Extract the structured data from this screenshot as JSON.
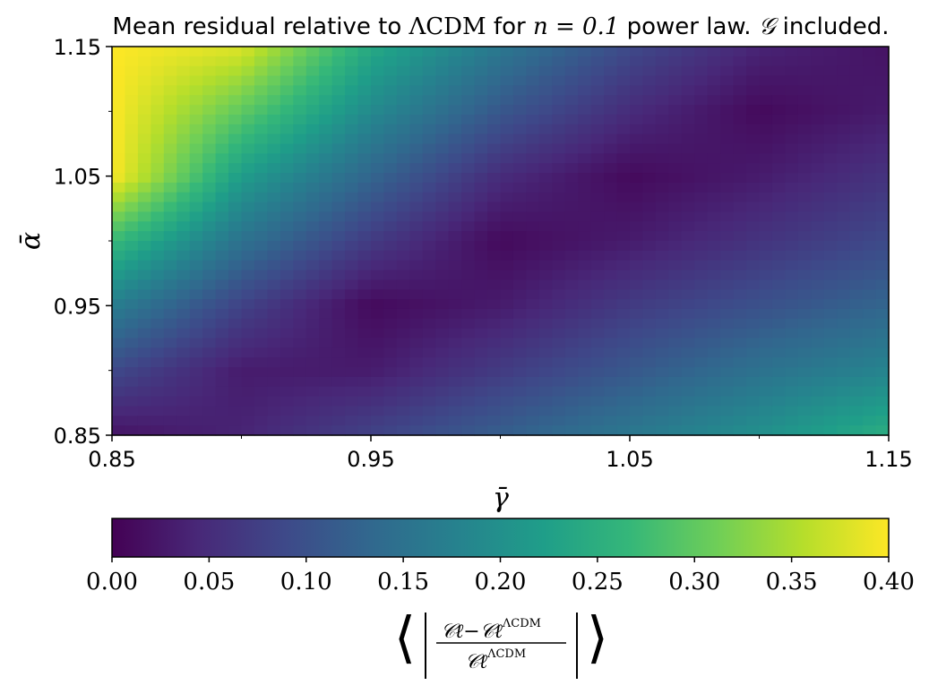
{
  "chart_data": {
    "type": "heatmap",
    "title": "Mean residual relative to ΛCDM for n = 0.1 power law. 𝒢 included.",
    "xlabel": "γ̄",
    "ylabel": "ᾱ",
    "xlim": [
      0.85,
      1.15
    ],
    "ylim": [
      0.85,
      1.15
    ],
    "x_ticks": [
      "0.85",
      "0.95",
      "1.05",
      "1.15"
    ],
    "y_ticks": [
      "0.85",
      "0.95",
      "1.05",
      "1.15"
    ],
    "x": [
      0.85,
      0.9,
      0.95,
      1.0,
      1.05,
      1.1,
      1.15
    ],
    "y": [
      0.85,
      0.9,
      0.95,
      1.0,
      1.05,
      1.1,
      1.15
    ],
    "z": [
      [
        0.02,
        0.04,
        0.08,
        0.12,
        0.16,
        0.2,
        0.25
      ],
      [
        0.09,
        0.03,
        0.03,
        0.07,
        0.11,
        0.15,
        0.18
      ],
      [
        0.17,
        0.08,
        0.01,
        0.03,
        0.07,
        0.1,
        0.13
      ],
      [
        0.27,
        0.15,
        0.07,
        0.01,
        0.03,
        0.06,
        0.09
      ],
      [
        0.4,
        0.22,
        0.13,
        0.05,
        0.01,
        0.03,
        0.06
      ],
      [
        0.4,
        0.3,
        0.19,
        0.11,
        0.05,
        0.01,
        0.03
      ],
      [
        0.4,
        0.38,
        0.24,
        0.16,
        0.09,
        0.04,
        0.02
      ]
    ],
    "colormap": "viridis",
    "colorbar": {
      "vmin": 0.0,
      "vmax": 0.4,
      "ticks": [
        "0.00",
        "0.05",
        "0.10",
        "0.15",
        "0.20",
        "0.25",
        "0.30",
        "0.35",
        "0.40"
      ],
      "label": "⟨ | (𝒞ℓ − 𝒞ℓ^ΛCDM) / 𝒞ℓ^ΛCDM | ⟩"
    },
    "grid": false
  },
  "title_parts": {
    "pre": "Mean residual relative to ",
    "lcdm": "ΛCDM",
    "mid1": " for ",
    "n_expr": "n = 0.1",
    "mid2": " power law. ",
    "g_sym": "𝒢",
    "post": " included."
  },
  "cb_label_parts": {
    "lang": "⟨",
    "rang": "⟩",
    "num": "𝒞ℓ−𝒞ℓ",
    "sup": "ΛCDM",
    "den": "𝒞ℓ",
    "den_sup": "ΛCDM"
  },
  "colors": {
    "viridis": [
      "#440154",
      "#482878",
      "#3e4989",
      "#31688e",
      "#26828e",
      "#1f9e89",
      "#35b779",
      "#6ece58",
      "#b5de2b",
      "#fde725"
    ]
  }
}
